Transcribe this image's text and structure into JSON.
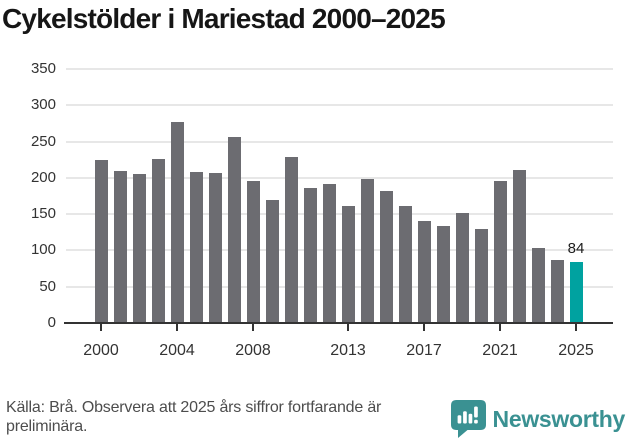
{
  "title": "Cykelstölder i Mariestad 2000–2025",
  "footer": {
    "source_note": "Källa: Brå. Observera att 2025 års siffror fortfarande är preliminära.",
    "brand": "Newsworthy"
  },
  "colors": {
    "bar": "#6c6c71",
    "highlight": "#00a2a0",
    "gridline": "#e7e7e7",
    "axis": "#333333",
    "axis_label": "#333333",
    "title_text": "#161616",
    "footer_text": "#4d4d4d",
    "brand_teal": "#3a9192",
    "value_label": "#1d1d1d"
  },
  "chart_data": {
    "type": "bar",
    "title": "Cykelstölder i Mariestad 2000–2025",
    "categories": [
      2000,
      2001,
      2002,
      2003,
      2004,
      2005,
      2006,
      2007,
      2008,
      2009,
      2010,
      2011,
      2012,
      2013,
      2014,
      2015,
      2016,
      2017,
      2018,
      2019,
      2020,
      2021,
      2022,
      2023,
      2024,
      2025
    ],
    "values": [
      225,
      210,
      205,
      226,
      277,
      208,
      207,
      256,
      195,
      170,
      229,
      186,
      192,
      161,
      199,
      182,
      161,
      141,
      134,
      152,
      129,
      195,
      211,
      104,
      87,
      84
    ],
    "highlight_index": 25,
    "highlight_label": "84",
    "xlabel": "",
    "ylabel": "",
    "ylim": [
      0,
      350
    ],
    "y_ticks": [
      0,
      50,
      100,
      150,
      200,
      250,
      300,
      350
    ],
    "x_tick_labels": [
      "2000",
      "2004",
      "2008",
      "2013",
      "2017",
      "2021",
      "2025"
    ],
    "grid": "horizontal",
    "legend": "none"
  }
}
